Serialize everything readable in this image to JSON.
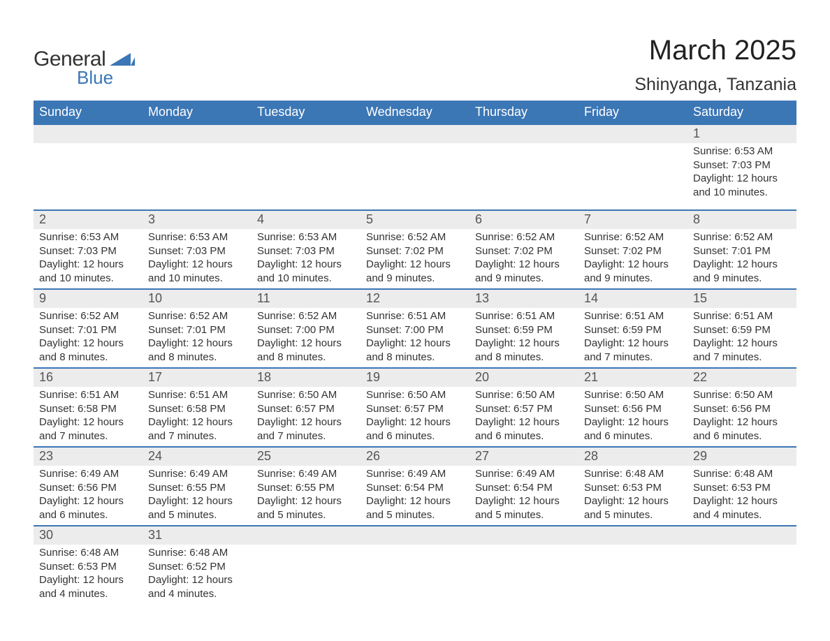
{
  "logo": {
    "text_top": "General",
    "text_bottom": "Blue",
    "triangle_color": "#3b76b5"
  },
  "title": "March 2025",
  "location": "Shinyanga, Tanzania",
  "colors": {
    "header_bg": "#3b76b5",
    "header_text": "#ffffff",
    "daynum_bg": "#ececec",
    "row_divider": "#3b76b5",
    "body_text": "#333333",
    "daynum_text": "#555555",
    "page_bg": "#ffffff"
  },
  "fonts": {
    "title_size_pt": 30,
    "location_size_pt": 19,
    "header_size_pt": 14,
    "daynum_size_pt": 14,
    "detail_size_pt": 11
  },
  "days_of_week": [
    "Sunday",
    "Monday",
    "Tuesday",
    "Wednesday",
    "Thursday",
    "Friday",
    "Saturday"
  ],
  "weeks": [
    {
      "nums": [
        "",
        "",
        "",
        "",
        "",
        "",
        "1"
      ],
      "details": [
        "",
        "",
        "",
        "",
        "",
        "",
        "Sunrise: 6:53 AM\nSunset: 7:03 PM\nDaylight: 12 hours and 10 minutes."
      ]
    },
    {
      "nums": [
        "2",
        "3",
        "4",
        "5",
        "6",
        "7",
        "8"
      ],
      "details": [
        "Sunrise: 6:53 AM\nSunset: 7:03 PM\nDaylight: 12 hours and 10 minutes.",
        "Sunrise: 6:53 AM\nSunset: 7:03 PM\nDaylight: 12 hours and 10 minutes.",
        "Sunrise: 6:53 AM\nSunset: 7:03 PM\nDaylight: 12 hours and 10 minutes.",
        "Sunrise: 6:52 AM\nSunset: 7:02 PM\nDaylight: 12 hours and 9 minutes.",
        "Sunrise: 6:52 AM\nSunset: 7:02 PM\nDaylight: 12 hours and 9 minutes.",
        "Sunrise: 6:52 AM\nSunset: 7:02 PM\nDaylight: 12 hours and 9 minutes.",
        "Sunrise: 6:52 AM\nSunset: 7:01 PM\nDaylight: 12 hours and 9 minutes."
      ]
    },
    {
      "nums": [
        "9",
        "10",
        "11",
        "12",
        "13",
        "14",
        "15"
      ],
      "details": [
        "Sunrise: 6:52 AM\nSunset: 7:01 PM\nDaylight: 12 hours and 8 minutes.",
        "Sunrise: 6:52 AM\nSunset: 7:01 PM\nDaylight: 12 hours and 8 minutes.",
        "Sunrise: 6:52 AM\nSunset: 7:00 PM\nDaylight: 12 hours and 8 minutes.",
        "Sunrise: 6:51 AM\nSunset: 7:00 PM\nDaylight: 12 hours and 8 minutes.",
        "Sunrise: 6:51 AM\nSunset: 6:59 PM\nDaylight: 12 hours and 8 minutes.",
        "Sunrise: 6:51 AM\nSunset: 6:59 PM\nDaylight: 12 hours and 7 minutes.",
        "Sunrise: 6:51 AM\nSunset: 6:59 PM\nDaylight: 12 hours and 7 minutes."
      ]
    },
    {
      "nums": [
        "16",
        "17",
        "18",
        "19",
        "20",
        "21",
        "22"
      ],
      "details": [
        "Sunrise: 6:51 AM\nSunset: 6:58 PM\nDaylight: 12 hours and 7 minutes.",
        "Sunrise: 6:51 AM\nSunset: 6:58 PM\nDaylight: 12 hours and 7 minutes.",
        "Sunrise: 6:50 AM\nSunset: 6:57 PM\nDaylight: 12 hours and 7 minutes.",
        "Sunrise: 6:50 AM\nSunset: 6:57 PM\nDaylight: 12 hours and 6 minutes.",
        "Sunrise: 6:50 AM\nSunset: 6:57 PM\nDaylight: 12 hours and 6 minutes.",
        "Sunrise: 6:50 AM\nSunset: 6:56 PM\nDaylight: 12 hours and 6 minutes.",
        "Sunrise: 6:50 AM\nSunset: 6:56 PM\nDaylight: 12 hours and 6 minutes."
      ]
    },
    {
      "nums": [
        "23",
        "24",
        "25",
        "26",
        "27",
        "28",
        "29"
      ],
      "details": [
        "Sunrise: 6:49 AM\nSunset: 6:56 PM\nDaylight: 12 hours and 6 minutes.",
        "Sunrise: 6:49 AM\nSunset: 6:55 PM\nDaylight: 12 hours and 5 minutes.",
        "Sunrise: 6:49 AM\nSunset: 6:55 PM\nDaylight: 12 hours and 5 minutes.",
        "Sunrise: 6:49 AM\nSunset: 6:54 PM\nDaylight: 12 hours and 5 minutes.",
        "Sunrise: 6:49 AM\nSunset: 6:54 PM\nDaylight: 12 hours and 5 minutes.",
        "Sunrise: 6:48 AM\nSunset: 6:53 PM\nDaylight: 12 hours and 5 minutes.",
        "Sunrise: 6:48 AM\nSunset: 6:53 PM\nDaylight: 12 hours and 4 minutes."
      ]
    },
    {
      "nums": [
        "30",
        "31",
        "",
        "",
        "",
        "",
        ""
      ],
      "details": [
        "Sunrise: 6:48 AM\nSunset: 6:53 PM\nDaylight: 12 hours and 4 minutes.",
        "Sunrise: 6:48 AM\nSunset: 6:52 PM\nDaylight: 12 hours and 4 minutes.",
        "",
        "",
        "",
        "",
        ""
      ]
    }
  ]
}
